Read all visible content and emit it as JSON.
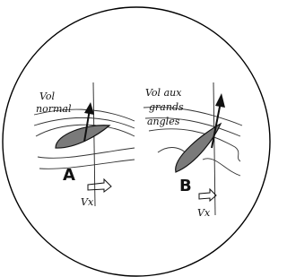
{
  "panels": [
    {
      "caption": [
        "Vol",
        "normal"
      ],
      "label": "A",
      "velocity": "Vx"
    },
    {
      "caption": [
        "Vol aux",
        "grands",
        "angles"
      ],
      "label": "B",
      "velocity": "Vx"
    }
  ]
}
